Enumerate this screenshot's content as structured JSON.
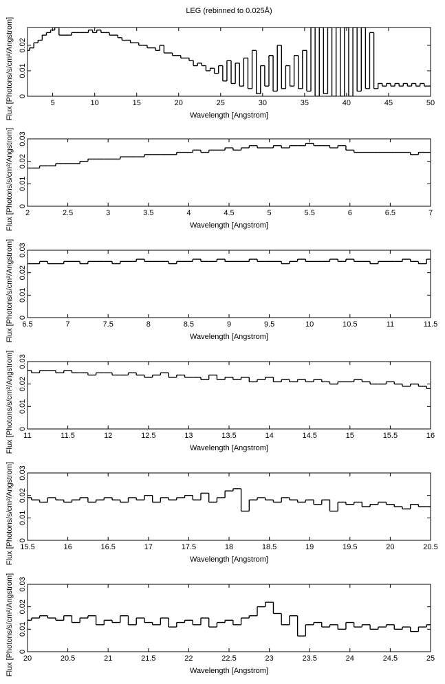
{
  "chart_data": [
    {
      "type": "step",
      "title": "LEG (rebinned to 0.025Å)",
      "xlabel": "Wavelength [Angstrom]",
      "ylabel": "Flux [Photons/s/cm²/Angstrom]",
      "color": "#000000",
      "xlim": [
        2,
        50
      ],
      "xticks": [
        5,
        10,
        15,
        20,
        25,
        30,
        35,
        40,
        45,
        50
      ],
      "ylim": [
        0,
        0.027
      ],
      "yticks": [
        0,
        0.01,
        0.02
      ],
      "x": [
        2,
        2.5,
        3,
        3.5,
        4,
        4.5,
        5,
        5.5,
        6,
        6.5,
        7,
        7.5,
        8,
        8.5,
        9,
        9.5,
        10,
        10.5,
        11,
        11.5,
        12,
        12.5,
        13,
        13.5,
        14,
        14.5,
        15,
        15.5,
        16,
        16.5,
        17,
        17.5,
        18,
        18.5,
        19,
        19.5,
        20,
        20.5,
        21,
        21.5,
        22,
        22.5,
        23,
        23.5,
        24,
        24.5,
        25,
        25.5,
        26,
        26.5,
        27,
        27.5,
        28,
        28.5,
        29,
        29.5,
        30,
        30.5,
        31,
        31.5,
        32,
        32.5,
        33,
        33.5,
        34,
        34.5,
        35,
        35.5,
        36,
        36.5,
        37,
        37.5,
        38,
        38.5,
        39,
        39.5,
        40,
        40.5,
        41,
        41.5,
        42,
        42.5,
        43,
        43.5,
        44,
        44.5,
        45,
        45.5,
        46,
        46.5,
        47,
        47.5,
        48,
        48.5,
        49,
        49.5,
        50
      ],
      "values": [
        0.018,
        0.019,
        0.021,
        0.022,
        0.024,
        0.025,
        0.026,
        0.027,
        0.024,
        0.024,
        0.024,
        0.025,
        0.025,
        0.025,
        0.025,
        0.026,
        0.025,
        0.026,
        0.025,
        0.025,
        0.024,
        0.024,
        0.023,
        0.022,
        0.022,
        0.021,
        0.021,
        0.02,
        0.02,
        0.019,
        0.019,
        0.018,
        0.02,
        0.017,
        0.017,
        0.016,
        0.016,
        0.015,
        0.015,
        0.014,
        0.012,
        0.013,
        0.012,
        0.01,
        0.011,
        0.009,
        0.012,
        0.006,
        0.014,
        0.005,
        0.013,
        0.004,
        0.015,
        0.003,
        0.018,
        0.001,
        0.012,
        0.004,
        0.016,
        0.002,
        0.02,
        0.003,
        0.012,
        0.004,
        0.016,
        0.003,
        0.018,
        0.002,
        0.027,
        0,
        0.027,
        0.001,
        0.027,
        0,
        0.027,
        0,
        0.027,
        0,
        0.027,
        0.002,
        0.027,
        0.003,
        0.025,
        0.003,
        0.005,
        0.004,
        0.005,
        0.004,
        0.005,
        0.004,
        0.005,
        0.004,
        0.005,
        0.004,
        0.005,
        0.004,
        0.004
      ]
    },
    {
      "type": "step",
      "xlabel": "Wavelength [Angstrom]",
      "ylabel": "Flux [Photons/s/cm²/Angstrom]",
      "color": "#000000",
      "xlim": [
        2,
        7
      ],
      "xticks": [
        2,
        2.5,
        3,
        3.5,
        4,
        4.5,
        5,
        5.5,
        6,
        6.5,
        7
      ],
      "ylim": [
        0,
        0.03
      ],
      "yticks": [
        0,
        0.01,
        0.02,
        0.03
      ],
      "x": [
        2,
        2.1,
        2.2,
        2.3,
        2.4,
        2.5,
        2.6,
        2.7,
        2.8,
        2.9,
        3,
        3.1,
        3.2,
        3.3,
        3.4,
        3.5,
        3.6,
        3.7,
        3.8,
        3.9,
        4,
        4.1,
        4.2,
        4.3,
        4.4,
        4.5,
        4.6,
        4.7,
        4.8,
        4.9,
        5,
        5.1,
        5.2,
        5.3,
        5.4,
        5.5,
        5.6,
        5.7,
        5.8,
        5.9,
        6,
        6.1,
        6.2,
        6.3,
        6.4,
        6.5,
        6.6,
        6.7,
        6.8,
        6.9,
        7
      ],
      "values": [
        0.017,
        0.017,
        0.018,
        0.018,
        0.019,
        0.019,
        0.019,
        0.02,
        0.021,
        0.021,
        0.021,
        0.021,
        0.022,
        0.022,
        0.022,
        0.023,
        0.023,
        0.023,
        0.023,
        0.024,
        0.024,
        0.025,
        0.024,
        0.025,
        0.025,
        0.026,
        0.025,
        0.026,
        0.027,
        0.026,
        0.026,
        0.027,
        0.026,
        0.027,
        0.027,
        0.028,
        0.027,
        0.027,
        0.026,
        0.027,
        0.025,
        0.024,
        0.024,
        0.024,
        0.024,
        0.024,
        0.024,
        0.024,
        0.023,
        0.024,
        0.024
      ]
    },
    {
      "type": "step",
      "xlabel": "Wavelength [Angstrom]",
      "ylabel": "Flux [Photons/s/cm²/Angstrom]",
      "color": "#000000",
      "xlim": [
        6.5,
        11.5
      ],
      "xticks": [
        6.5,
        7,
        7.5,
        8,
        8.5,
        9,
        9.5,
        10,
        10.5,
        11,
        11.5
      ],
      "ylim": [
        0,
        0.03
      ],
      "yticks": [
        0,
        0.01,
        0.02,
        0.03
      ],
      "x": [
        6.5,
        6.6,
        6.7,
        6.8,
        6.9,
        7,
        7.1,
        7.2,
        7.3,
        7.4,
        7.5,
        7.6,
        7.7,
        7.8,
        7.9,
        8,
        8.1,
        8.2,
        8.3,
        8.4,
        8.5,
        8.6,
        8.7,
        8.8,
        8.9,
        9,
        9.1,
        9.2,
        9.3,
        9.4,
        9.5,
        9.6,
        9.7,
        9.8,
        9.9,
        10,
        10.1,
        10.2,
        10.3,
        10.4,
        10.5,
        10.6,
        10.7,
        10.8,
        10.9,
        11,
        11.1,
        11.2,
        11.3,
        11.4,
        11.5
      ],
      "values": [
        0.024,
        0.024,
        0.025,
        0.024,
        0.024,
        0.025,
        0.025,
        0.024,
        0.025,
        0.025,
        0.025,
        0.024,
        0.025,
        0.025,
        0.026,
        0.025,
        0.025,
        0.025,
        0.024,
        0.025,
        0.025,
        0.026,
        0.025,
        0.025,
        0.026,
        0.025,
        0.025,
        0.025,
        0.026,
        0.025,
        0.025,
        0.025,
        0.024,
        0.025,
        0.026,
        0.025,
        0.025,
        0.025,
        0.026,
        0.025,
        0.026,
        0.025,
        0.025,
        0.024,
        0.025,
        0.025,
        0.025,
        0.026,
        0.025,
        0.024,
        0.026
      ]
    },
    {
      "type": "step",
      "xlabel": "Wavelength [Angstrom]",
      "ylabel": "Flux [Photons/s/cm²/Angstrom]",
      "color": "#000000",
      "xlim": [
        11,
        16
      ],
      "xticks": [
        11,
        11.5,
        12,
        12.5,
        13,
        13.5,
        14,
        14.5,
        15,
        15.5,
        16
      ],
      "ylim": [
        0,
        0.03
      ],
      "yticks": [
        0,
        0.01,
        0.02,
        0.03
      ],
      "x": [
        11,
        11.1,
        11.2,
        11.3,
        11.4,
        11.5,
        11.6,
        11.7,
        11.8,
        11.9,
        12,
        12.1,
        12.2,
        12.3,
        12.4,
        12.5,
        12.6,
        12.7,
        12.8,
        12.9,
        13,
        13.1,
        13.2,
        13.3,
        13.4,
        13.5,
        13.6,
        13.7,
        13.8,
        13.9,
        14,
        14.1,
        14.2,
        14.3,
        14.4,
        14.5,
        14.6,
        14.7,
        14.8,
        14.9,
        15,
        15.1,
        15.2,
        15.3,
        15.4,
        15.5,
        15.6,
        15.7,
        15.8,
        15.9,
        16
      ],
      "values": [
        0.026,
        0.025,
        0.026,
        0.026,
        0.025,
        0.026,
        0.025,
        0.025,
        0.024,
        0.025,
        0.025,
        0.024,
        0.024,
        0.025,
        0.024,
        0.023,
        0.024,
        0.025,
        0.023,
        0.024,
        0.023,
        0.023,
        0.022,
        0.024,
        0.022,
        0.023,
        0.022,
        0.023,
        0.021,
        0.022,
        0.023,
        0.021,
        0.022,
        0.021,
        0.022,
        0.021,
        0.022,
        0.021,
        0.02,
        0.021,
        0.021,
        0.022,
        0.021,
        0.02,
        0.02,
        0.021,
        0.02,
        0.019,
        0.02,
        0.019,
        0.018
      ]
    },
    {
      "type": "step",
      "xlabel": "Wavelength [Angstrom]",
      "ylabel": "Flux [Photons/s/cm²/Angstrom]",
      "color": "#000000",
      "xlim": [
        15.5,
        20.5
      ],
      "xticks": [
        15.5,
        16,
        16.5,
        17,
        17.5,
        18,
        18.5,
        19,
        19.5,
        20,
        20.5
      ],
      "ylim": [
        0,
        0.03
      ],
      "yticks": [
        0,
        0.01,
        0.02,
        0.03
      ],
      "x": [
        15.5,
        15.6,
        15.7,
        15.8,
        15.9,
        16,
        16.1,
        16.2,
        16.3,
        16.4,
        16.5,
        16.6,
        16.7,
        16.8,
        16.9,
        17,
        17.1,
        17.2,
        17.3,
        17.4,
        17.5,
        17.6,
        17.7,
        17.8,
        17.9,
        18,
        18.1,
        18.2,
        18.3,
        18.4,
        18.5,
        18.6,
        18.7,
        18.8,
        18.9,
        19,
        19.1,
        19.2,
        19.3,
        19.4,
        19.5,
        19.6,
        19.7,
        19.8,
        19.9,
        20,
        20.1,
        20.2,
        20.3,
        20.4,
        20.5
      ],
      "values": [
        0.019,
        0.018,
        0.017,
        0.019,
        0.018,
        0.017,
        0.018,
        0.019,
        0.017,
        0.018,
        0.019,
        0.018,
        0.017,
        0.019,
        0.018,
        0.02,
        0.017,
        0.019,
        0.018,
        0.019,
        0.02,
        0.018,
        0.021,
        0.017,
        0.019,
        0.022,
        0.023,
        0.013,
        0.018,
        0.019,
        0.018,
        0.017,
        0.019,
        0.018,
        0.017,
        0.018,
        0.016,
        0.018,
        0.013,
        0.017,
        0.016,
        0.017,
        0.015,
        0.016,
        0.017,
        0.016,
        0.015,
        0.014,
        0.016,
        0.015,
        0.015
      ]
    },
    {
      "type": "step",
      "xlabel": "Wavelength [Angstrom]",
      "ylabel": "Flux [Photons/s/cm²/Angstrom]",
      "color": "#000000",
      "xlim": [
        20,
        25
      ],
      "xticks": [
        20,
        20.5,
        21,
        21.5,
        22,
        22.5,
        23,
        23.5,
        24,
        24.5,
        25
      ],
      "ylim": [
        0,
        0.03
      ],
      "yticks": [
        0,
        0.01,
        0.02,
        0.03
      ],
      "x": [
        20,
        20.1,
        20.2,
        20.3,
        20.4,
        20.5,
        20.6,
        20.7,
        20.8,
        20.9,
        21,
        21.1,
        21.2,
        21.3,
        21.4,
        21.5,
        21.6,
        21.7,
        21.8,
        21.9,
        22,
        22.1,
        22.2,
        22.3,
        22.4,
        22.5,
        22.6,
        22.7,
        22.8,
        22.9,
        23,
        23.1,
        23.2,
        23.3,
        23.4,
        23.5,
        23.6,
        23.7,
        23.8,
        23.9,
        24,
        24.1,
        24.2,
        24.3,
        24.4,
        24.5,
        24.6,
        24.7,
        24.8,
        24.9,
        25
      ],
      "values": [
        0.014,
        0.015,
        0.016,
        0.015,
        0.014,
        0.016,
        0.013,
        0.015,
        0.016,
        0.012,
        0.014,
        0.013,
        0.016,
        0.012,
        0.015,
        0.013,
        0.012,
        0.015,
        0.011,
        0.013,
        0.014,
        0.012,
        0.015,
        0.011,
        0.013,
        0.014,
        0.012,
        0.015,
        0.016,
        0.02,
        0.022,
        0.017,
        0.012,
        0.016,
        0.007,
        0.012,
        0.013,
        0.011,
        0.012,
        0.01,
        0.013,
        0.011,
        0.012,
        0.01,
        0.011,
        0.012,
        0.01,
        0.011,
        0.009,
        0.011,
        0.012
      ]
    }
  ]
}
